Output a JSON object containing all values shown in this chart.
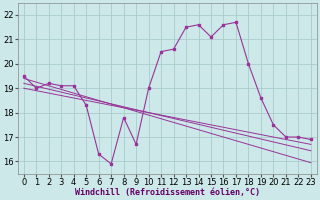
{
  "x": [
    0,
    1,
    2,
    3,
    4,
    5,
    6,
    7,
    8,
    9,
    10,
    11,
    12,
    13,
    14,
    15,
    16,
    17,
    18,
    19,
    20,
    21,
    22,
    23
  ],
  "y_main": [
    19.5,
    19.0,
    19.2,
    19.1,
    19.1,
    18.3,
    16.3,
    15.9,
    17.8,
    16.7,
    19.0,
    20.5,
    20.6,
    21.5,
    21.6,
    21.1,
    21.6,
    21.7,
    20.0,
    18.6,
    17.5,
    17.0,
    17.0,
    16.9
  ],
  "y_trend1": [
    19.4,
    19.25,
    19.1,
    18.95,
    18.8,
    18.65,
    18.5,
    18.35,
    18.2,
    18.05,
    17.9,
    17.75,
    17.6,
    17.45,
    17.3,
    17.15,
    17.0,
    16.85,
    16.7,
    16.55,
    16.4,
    16.25,
    16.1,
    15.95
  ],
  "y_trend2": [
    19.2,
    19.08,
    18.96,
    18.84,
    18.72,
    18.6,
    18.48,
    18.36,
    18.24,
    18.12,
    18.0,
    17.88,
    17.76,
    17.64,
    17.52,
    17.4,
    17.28,
    17.16,
    17.04,
    16.92,
    16.8,
    16.68,
    16.56,
    16.44
  ],
  "y_trend3": [
    19.0,
    18.9,
    18.8,
    18.7,
    18.6,
    18.5,
    18.4,
    18.3,
    18.2,
    18.1,
    18.0,
    17.9,
    17.8,
    17.7,
    17.6,
    17.5,
    17.4,
    17.3,
    17.2,
    17.1,
    17.0,
    16.9,
    16.8,
    16.7
  ],
  "color_main": "#993399",
  "color_trend": "#993399",
  "bg_color": "#cce8e8",
  "grid_color": "#aacccc",
  "ylim": [
    15.5,
    22.5
  ],
  "xlim": [
    -0.5,
    23.5
  ],
  "yticks": [
    16,
    17,
    18,
    19,
    20,
    21,
    22
  ],
  "xticks": [
    0,
    1,
    2,
    3,
    4,
    5,
    6,
    7,
    8,
    9,
    10,
    11,
    12,
    13,
    14,
    15,
    16,
    17,
    18,
    19,
    20,
    21,
    22,
    23
  ],
  "xlabel": "Windchill (Refroidissement éolien,°C)",
  "tick_fontsize": 6,
  "xlabel_fontsize": 6
}
